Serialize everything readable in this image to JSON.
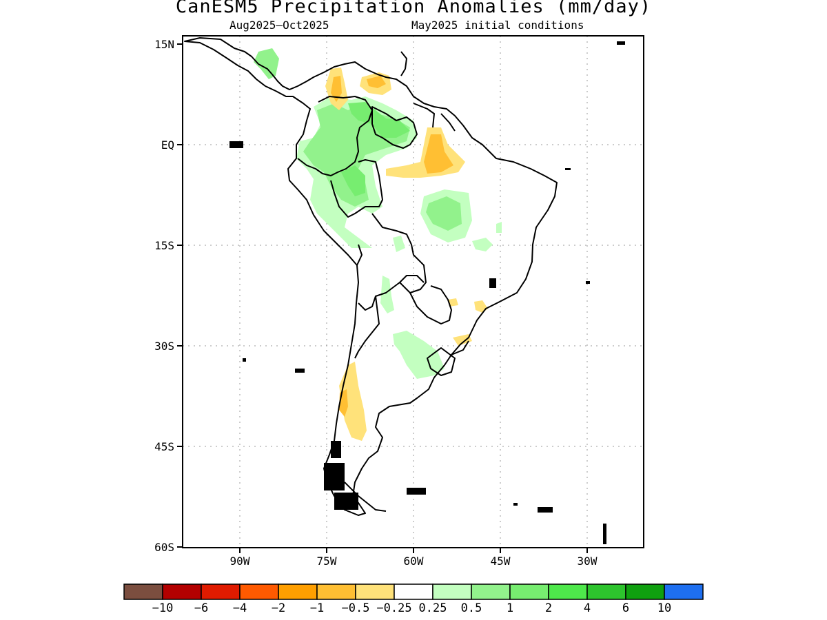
{
  "title": "CanESM5 Precipitation Anomalies (mm/day)",
  "subtitle_left": "Aug2025–Oct2025",
  "subtitle_right": "May2025 initial conditions",
  "map": {
    "lat_labels": [
      "15N",
      "EQ",
      "15S",
      "30S",
      "45S",
      "60S"
    ],
    "lon_labels": [
      "90W",
      "75W",
      "60W",
      "45W",
      "30W"
    ],
    "grid": "dotted"
  },
  "colorbar": {
    "colors": [
      "#7b4e3f",
      "#b30000",
      "#e01b00",
      "#ff5a00",
      "#ff9f00",
      "#ffbf33",
      "#ffe27a",
      "#ffffff",
      "#c3ffc0",
      "#92f28c",
      "#77ed70",
      "#4ee84b",
      "#2dc42d",
      "#0fa00f",
      "#1e6ff0"
    ],
    "labels": [
      "−10",
      "−6",
      "−4",
      "−2",
      "−1",
      "−0.5",
      "−0.25",
      "0.25",
      "0.5",
      "1",
      "2",
      "4",
      "6",
      "10"
    ]
  }
}
